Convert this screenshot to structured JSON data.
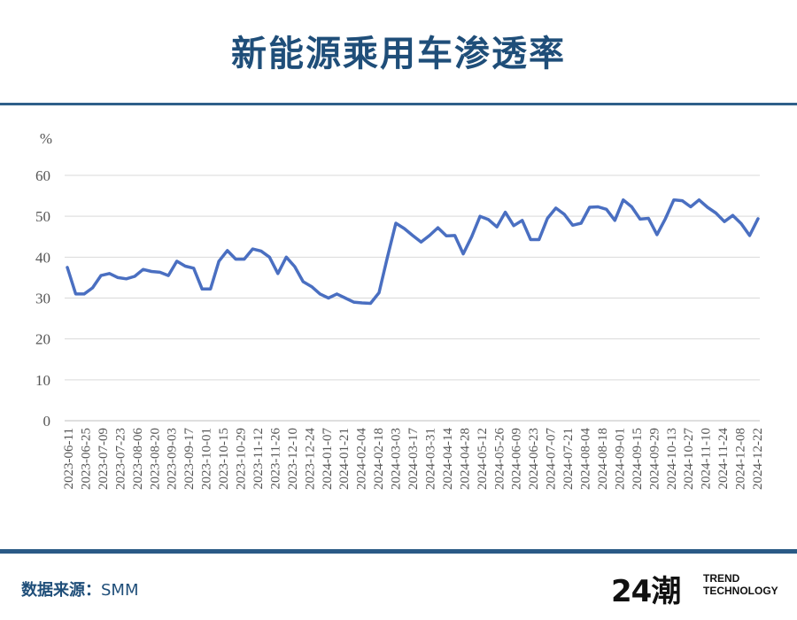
{
  "header": {
    "title": "新能源乘用车渗透率"
  },
  "footer": {
    "source_label": "数据来源：",
    "source_value": "SMM",
    "brand_mark": "24潮",
    "brand_line1": "TREND",
    "brand_line2": "TECHNOLOGY"
  },
  "colors": {
    "line": "#4a6fc1",
    "title": "#1f4e79",
    "rule": "#2f5f8a",
    "grid": "#d9d9d9"
  },
  "chart_data": {
    "type": "line",
    "title": "",
    "ylabel": "%",
    "ylim": [
      0,
      60
    ],
    "yticks": [
      0,
      10,
      20,
      30,
      40,
      50,
      60
    ],
    "grid": true,
    "x_tick_labels": [
      "2023-06-11",
      "2023-06-25",
      "2023-07-09",
      "2023-07-23",
      "2023-08-06",
      "2023-08-20",
      "2023-09-03",
      "2023-09-17",
      "2023-10-01",
      "2023-10-15",
      "2023-10-29",
      "2023-11-12",
      "2023-11-26",
      "2023-12-10",
      "2023-12-24",
      "2024-01-07",
      "2024-01-21",
      "2024-02-04",
      "2024-02-18",
      "2024-03-03",
      "2024-03-17",
      "2024-03-31",
      "2024-04-14",
      "2024-04-28",
      "2024-05-12",
      "2024-05-26",
      "2024-06-09",
      "2024-06-23",
      "2024-07-07",
      "2024-07-21",
      "2024-08-04",
      "2024-08-18",
      "2024-09-01",
      "2024-09-15",
      "2024-09-29",
      "2024-10-13",
      "2024-10-27",
      "2024-11-10",
      "2024-11-24",
      "2024-12-08",
      "2024-12-22"
    ],
    "series": [
      {
        "values": [
          37.5,
          31,
          31,
          32.5,
          35.5,
          36,
          35,
          34.7,
          35.3,
          37,
          36.5,
          36.3,
          35.5,
          39,
          37.8,
          37.3,
          32.2,
          32.2,
          39,
          41.6,
          39.5,
          39.5,
          42,
          41.5,
          40,
          36,
          40,
          37.7,
          34,
          32.8,
          31,
          30,
          31,
          30,
          29,
          28.8,
          28.7,
          31.3,
          40,
          48.3,
          47,
          45.3,
          43.7,
          45.3,
          47.2,
          45.2,
          45.3,
          40.8,
          45,
          50,
          49.2,
          47.4,
          51,
          47.7,
          49,
          44.3,
          44.3,
          49.5,
          52,
          50.5,
          47.8,
          48.3,
          52.2,
          52.3,
          51.7,
          49,
          54,
          52.3,
          49.3,
          49.5,
          45.5,
          49.4,
          54,
          53.8,
          52.3,
          54,
          52.2,
          50.8,
          48.7,
          50.2,
          48.2,
          45.3,
          49.4
        ]
      }
    ]
  }
}
